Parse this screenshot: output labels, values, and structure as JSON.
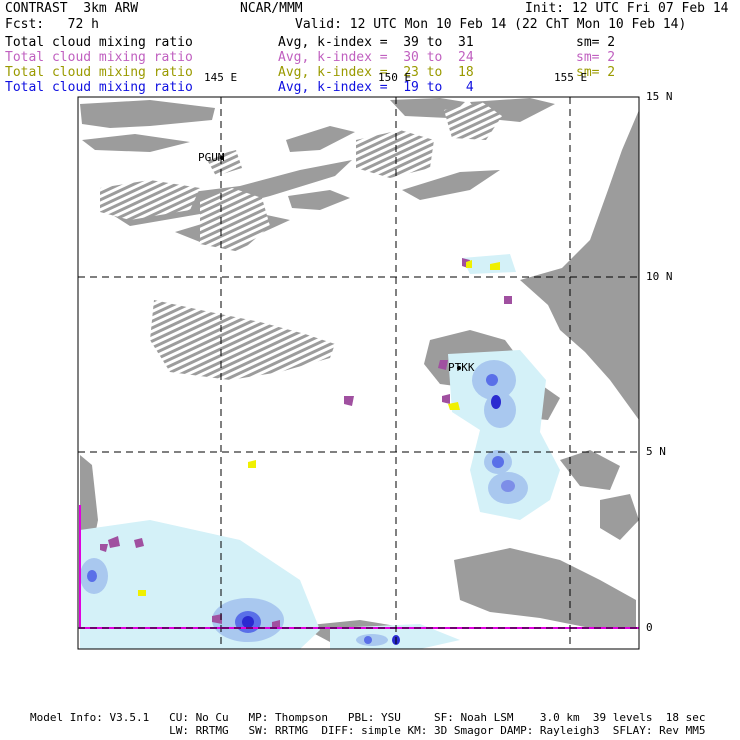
{
  "header": {
    "left_line1": "CONTRAST  3km ARW",
    "center_line1": "NCAR/MMM",
    "right_line1": "Init: 12 UTC Fri 07 Feb 14",
    "left_line2": "Fcst:   72 h",
    "right_line2": "Valid: 12 UTC Mon 10 Feb 14 (22 ChT Mon 10 Feb 14)"
  },
  "legend": [
    {
      "field": "Total cloud mixing ratio",
      "stat": "Avg, k-index =  39 to  31",
      "sm": "sm= 2",
      "color": "#000000",
      "cls": "black"
    },
    {
      "field": "Total cloud mixing ratio",
      "stat": "Avg, k-index =  30 to  24",
      "sm": "sm= 2",
      "color": "#c060c0",
      "cls": "violet"
    },
    {
      "field": "Total cloud mixing ratio",
      "stat": "Avg, k-index =  23 to  18",
      "sm": "sm= 2",
      "color": "#9a9a00",
      "cls": "olive"
    },
    {
      "field": "Total cloud mixing ratio",
      "stat": "Avg, k-index =  19 to   4",
      "sm": "",
      "color": "#1010e0",
      "cls": "blue"
    }
  ],
  "map": {
    "lon_labels": [
      "145 E",
      "150 E",
      "155 E"
    ],
    "lat_labels": [
      "15 N",
      "10 N",
      "5 N",
      "0"
    ],
    "stations": [
      "PGUM",
      "PTKK"
    ],
    "colors": {
      "land_gray": "#9c9c9c",
      "cloud_light": "#d4f1f8",
      "cloud_mid": "#a9c8ef",
      "cloud_blue": "#5a6fe8",
      "cloud_deep": "#2a2ad0",
      "violet": "#a050a0",
      "yellow": "#f0f000",
      "magenta": "#e000e0"
    }
  },
  "footer": {
    "line1": "Model Info: V3.5.1   CU: No Cu   MP: Thompson   PBL: YSU     SF: Noah LSM    3.0 km  39 levels  18 sec",
    "line2": "                     LW: RRTMG   SW: RRTMG  DIFF: simple KM: 3D Smagor DAMP: Rayleigh3  SFLAY: Rev MM5"
  }
}
